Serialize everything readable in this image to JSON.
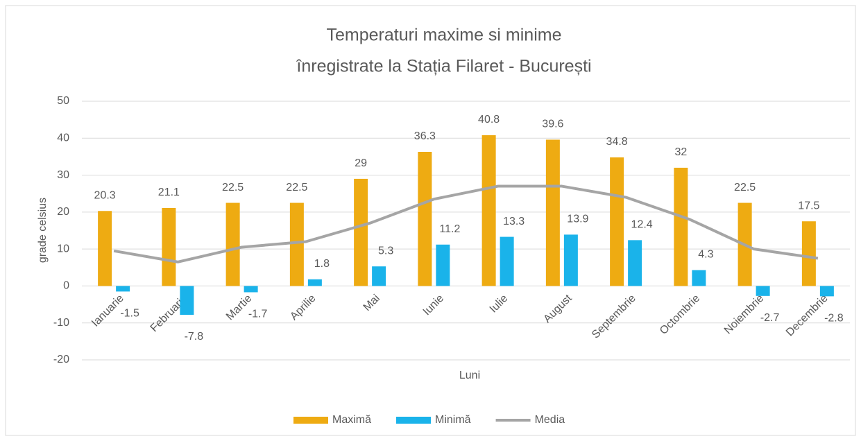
{
  "chart_data": {
    "type": "bar",
    "title": "Temperaturi maxime si minime",
    "subtitle": "înregistrate la Stația Filaret - București",
    "x_label": "Luni",
    "y_label": "grade celsius",
    "categories": [
      "Ianuarie",
      "Februarie",
      "Martie",
      "Aprilie",
      "Mai",
      "Iunie",
      "Iulie",
      "August",
      "Septembrie",
      "Octombrie",
      "Noiembrie",
      "Decembrie"
    ],
    "series": [
      {
        "name": "Maximă",
        "type": "bar",
        "color": "#eeab12",
        "values": [
          20.3,
          21.1,
          22.5,
          22.5,
          29,
          36.3,
          40.8,
          39.6,
          34.8,
          32,
          22.5,
          17.5
        ],
        "data_labels": true
      },
      {
        "name": "Minimă",
        "type": "bar",
        "color": "#1ab3ea",
        "values": [
          -1.5,
          -7.8,
          -1.7,
          1.8,
          5.3,
          11.2,
          13.3,
          13.9,
          12.4,
          4.3,
          -2.7,
          -2.8
        ],
        "data_labels": true
      },
      {
        "name": "Media",
        "type": "line",
        "color": "#a5a5a5",
        "values": [
          9.5,
          6.5,
          10.5,
          12,
          17,
          23.5,
          27,
          27,
          24,
          18,
          10,
          7.5
        ]
      }
    ],
    "ylim": [
      -20,
      50
    ],
    "yticks": [
      -20,
      -10,
      0,
      10,
      20,
      30,
      40,
      50
    ],
    "grid": true,
    "legend": "bottom"
  }
}
